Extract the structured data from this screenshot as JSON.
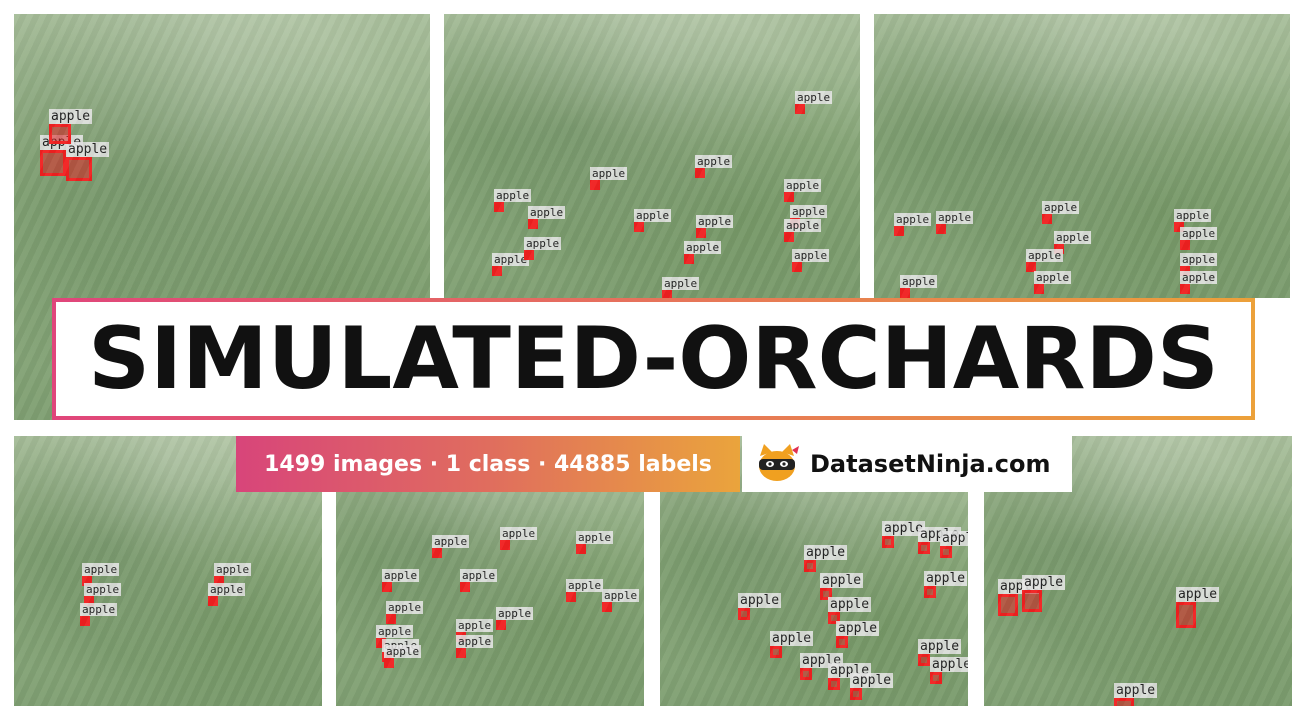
{
  "title": "SIMULATED-ORCHARDS",
  "stats": "1499 images · 1 class · 44885 labels",
  "brand": "DatasetNinja.com",
  "class_label": "apple",
  "logo_icon": "ninja-cat-icon",
  "colors": {
    "annotation": "#f22020",
    "gradient_start": "#d8457a",
    "gradient_end": "#eaa43c"
  }
}
